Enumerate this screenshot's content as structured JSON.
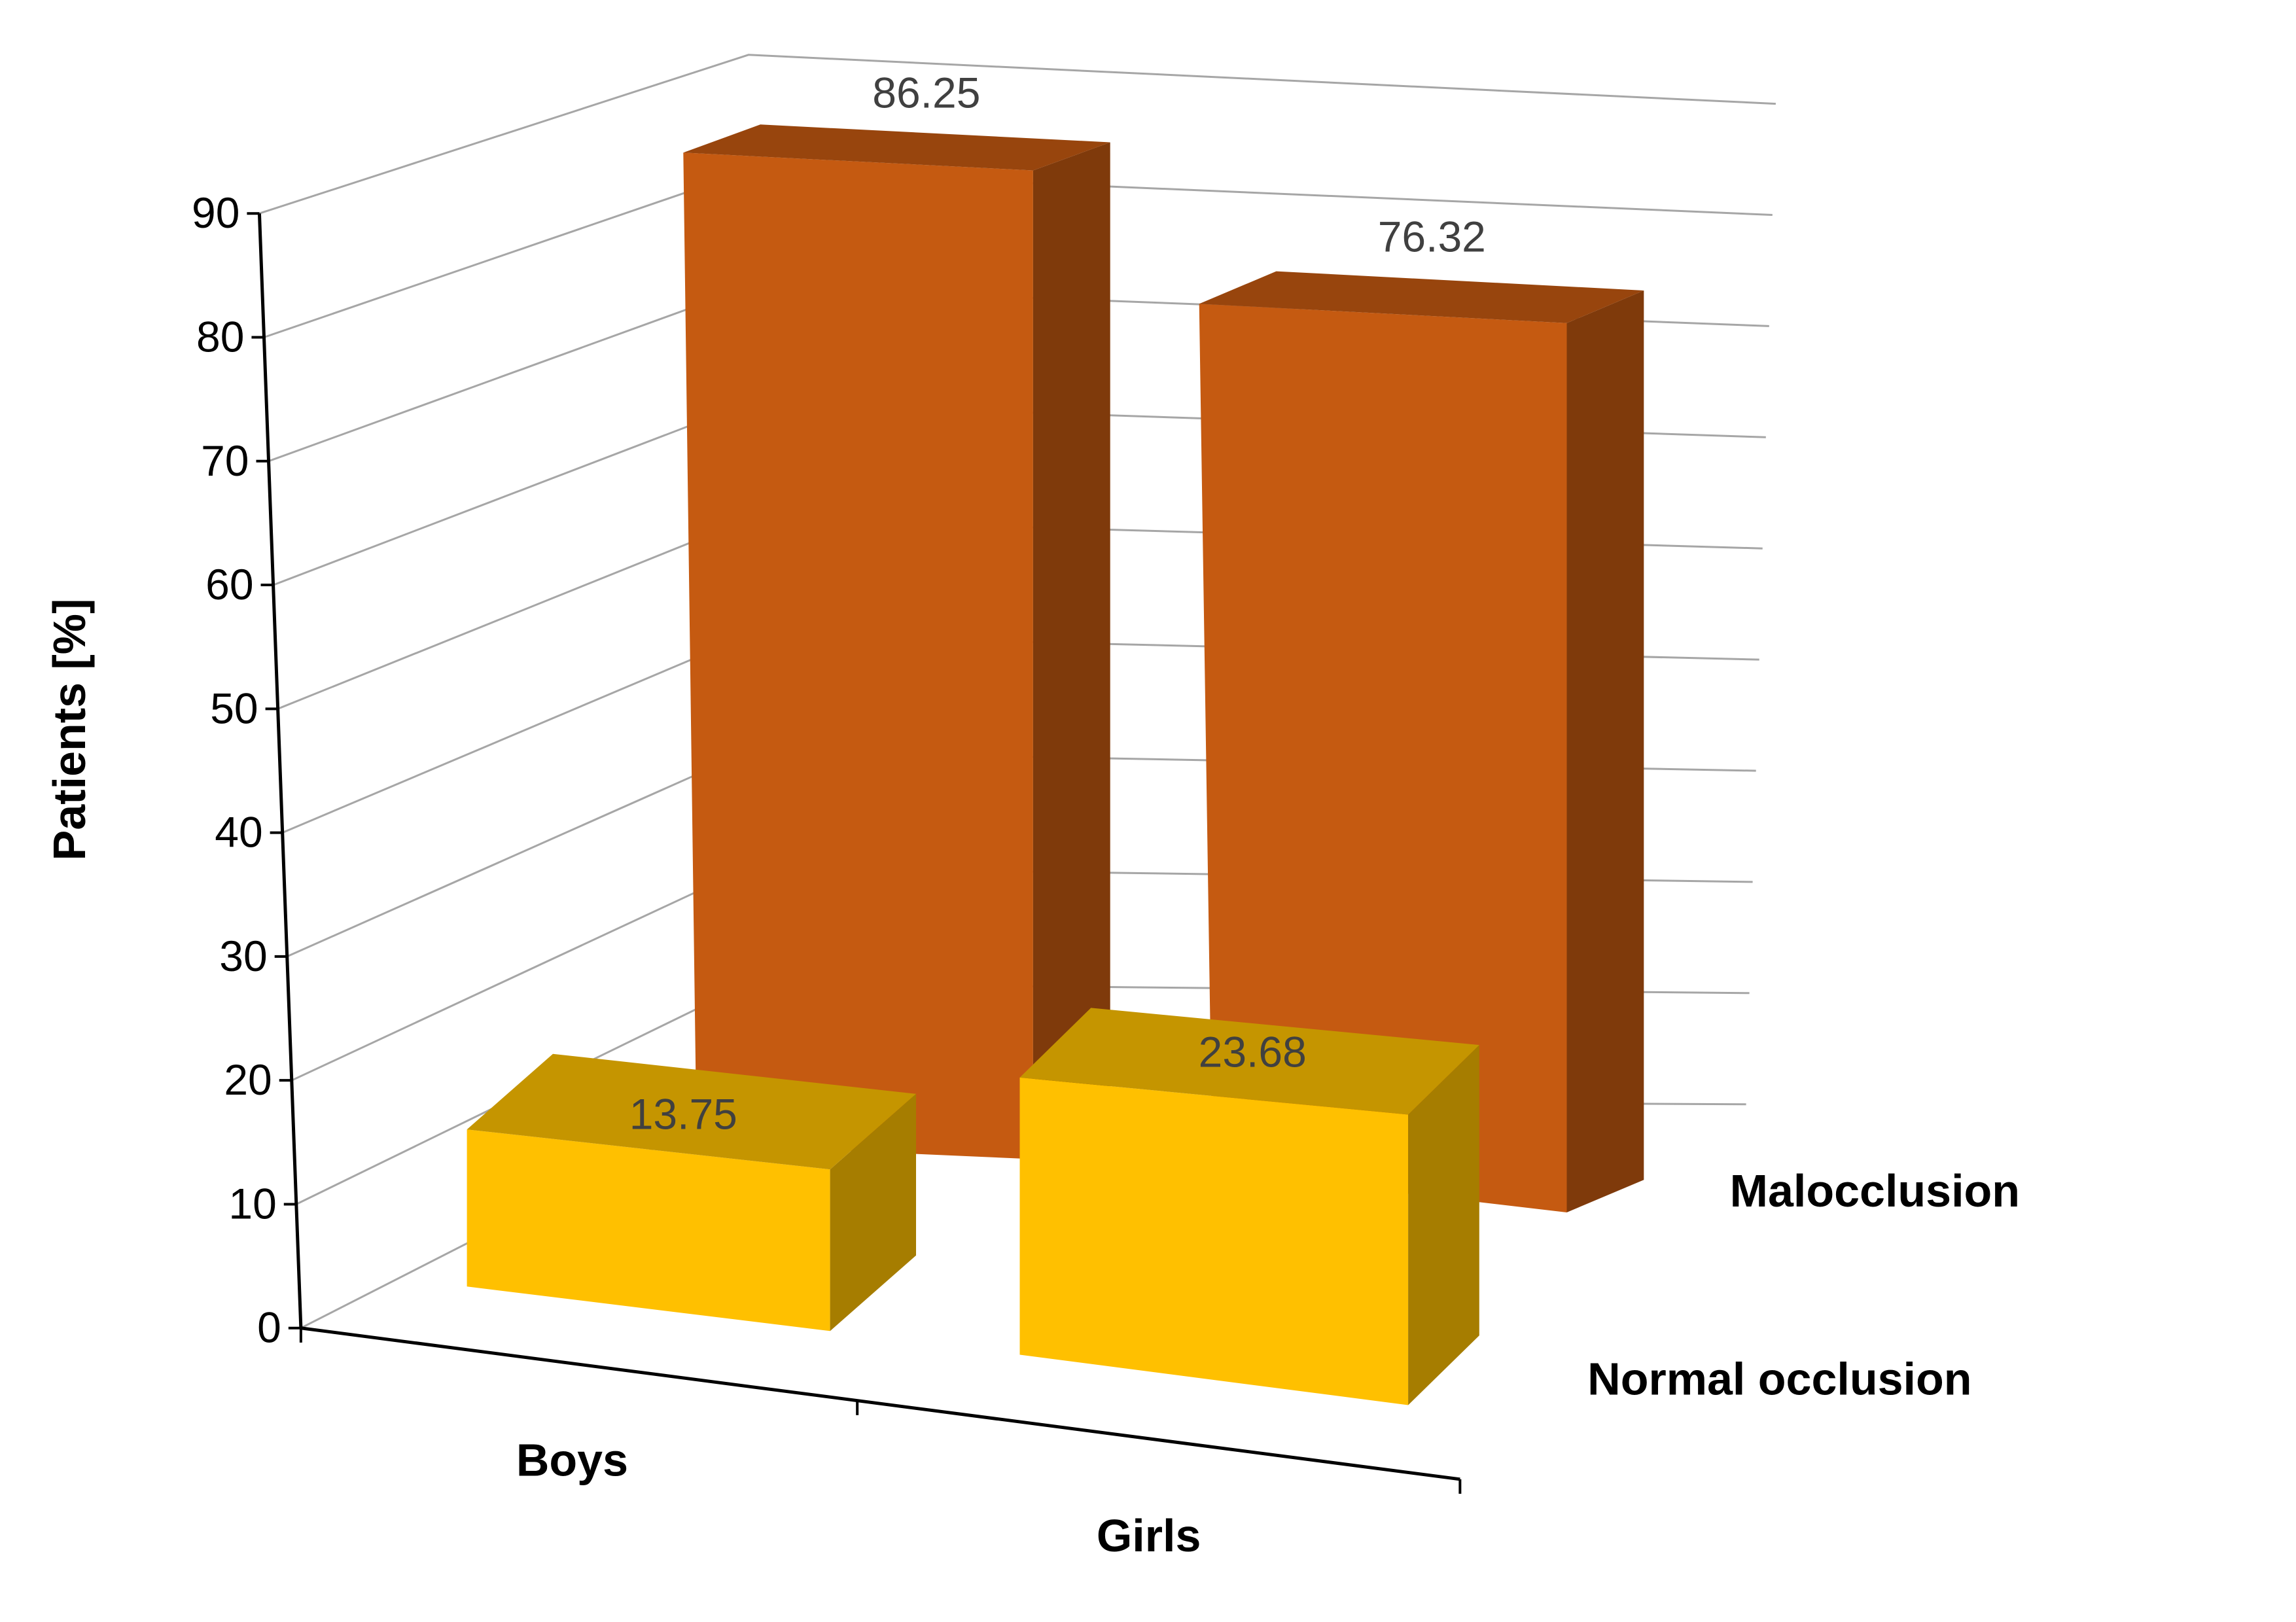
{
  "chart_data": {
    "type": "bar",
    "variant": "3d-column",
    "title": "",
    "xlabel": "",
    "ylabel": "Patients [%]",
    "ylim": [
      0,
      90
    ],
    "yticks": [
      "0",
      "10",
      "20",
      "30",
      "40",
      "50",
      "60",
      "70",
      "80",
      "90"
    ],
    "categories": [
      "Boys",
      "Girls"
    ],
    "series": [
      {
        "name": "Malocclusion",
        "values": [
          86.25,
          76.32
        ],
        "labels": [
          "86.25",
          "76.32"
        ],
        "color": "#C55A11",
        "top_color": "#98450D",
        "side_color": "#7F3A0B"
      },
      {
        "name": "Normal occlusion",
        "values": [
          13.75,
          23.68
        ],
        "labels": [
          "13.75",
          "23.68"
        ],
        "color": "#FFC000",
        "top_color": "#C59500",
        "side_color": "#A67D00"
      }
    ],
    "grid": true,
    "legend": "series labels at right of depth axis"
  }
}
